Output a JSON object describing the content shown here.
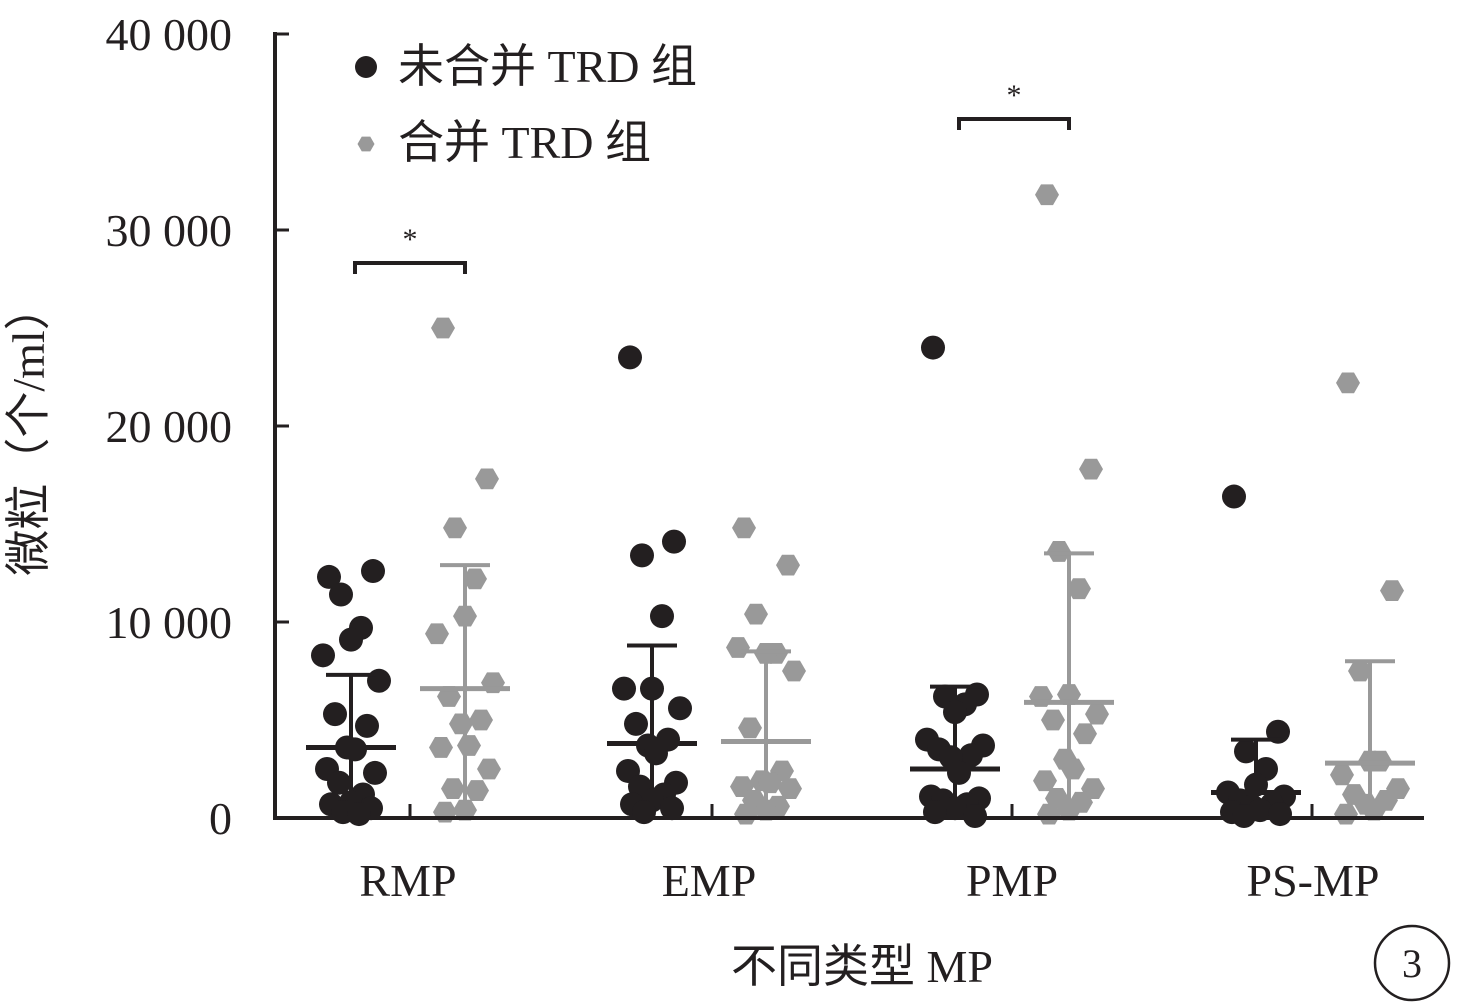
{
  "panel_label": "3",
  "colors": {
    "black_group": "#231f20",
    "gray_group": "#999999",
    "axis": "#231f20"
  },
  "chart_data": {
    "type": "scatter",
    "xlabel": "不同类型 MP",
    "ylabel": "微粒（个/ml）",
    "ylim": [
      0,
      40000
    ],
    "yticks": [
      0,
      10000,
      20000,
      30000,
      40000
    ],
    "ytick_labels": [
      "0",
      "10 000",
      "20 000",
      "30 000",
      "40 000"
    ],
    "categories": [
      "RMP",
      "EMP",
      "PMP",
      "PS-MP"
    ],
    "legend_position": "top-left",
    "series": [
      {
        "name": "未合并 TRD 组",
        "marker": "circle",
        "color": "#231f20",
        "points": [
          [
            12300,
            12600,
            11400,
            9700,
            9100,
            8300,
            7000,
            5300,
            4700,
            3600,
            3500,
            2500,
            2300,
            1800,
            1200,
            800,
            700,
            500,
            300,
            200
          ],
          [
            23500,
            14100,
            13400,
            10300,
            6600,
            6600,
            5600,
            4800,
            4000,
            3700,
            3300,
            2400,
            1800,
            1600,
            1200,
            900,
            700,
            500,
            300
          ],
          [
            24000,
            6300,
            6200,
            5800,
            5400,
            4000,
            3700,
            3500,
            3200,
            3100,
            2300,
            1100,
            1000,
            900,
            700,
            500,
            300,
            100
          ],
          [
            16400,
            4400,
            3400,
            2500,
            1700,
            1300,
            1100,
            900,
            700,
            600,
            400,
            300,
            200,
            100
          ]
        ],
        "mean": [
          3600,
          3800,
          2500,
          1300
        ],
        "sd_upper": [
          7300,
          8800,
          6700,
          4000
        ]
      },
      {
        "name": "合并 TRD 组",
        "marker": "hexagon",
        "color": "#999999",
        "points": [
          [
            25000,
            17300,
            14800,
            12200,
            10300,
            9400,
            6900,
            6200,
            5000,
            4800,
            3700,
            3600,
            2500,
            1500,
            1400,
            400,
            300
          ],
          [
            14800,
            12900,
            10400,
            8400,
            8400,
            8700,
            7500,
            4600,
            2400,
            1900,
            1800,
            1600,
            1500,
            900,
            600,
            400,
            200
          ],
          [
            31800,
            17800,
            13600,
            11700,
            6300,
            6200,
            5300,
            5000,
            4300,
            3000,
            2500,
            1900,
            1500,
            1000,
            800,
            400,
            200
          ],
          [
            22200,
            11600,
            7500,
            2900,
            2900,
            2200,
            1500,
            1200,
            900,
            700,
            400,
            200
          ]
        ],
        "mean": [
          6600,
          3900,
          5900,
          2800
        ],
        "sd_upper": [
          12900,
          8500,
          13500,
          8000
        ]
      }
    ],
    "significance": [
      {
        "category": "RMP",
        "label": "*"
      },
      {
        "category": "PMP",
        "label": "*"
      }
    ]
  }
}
